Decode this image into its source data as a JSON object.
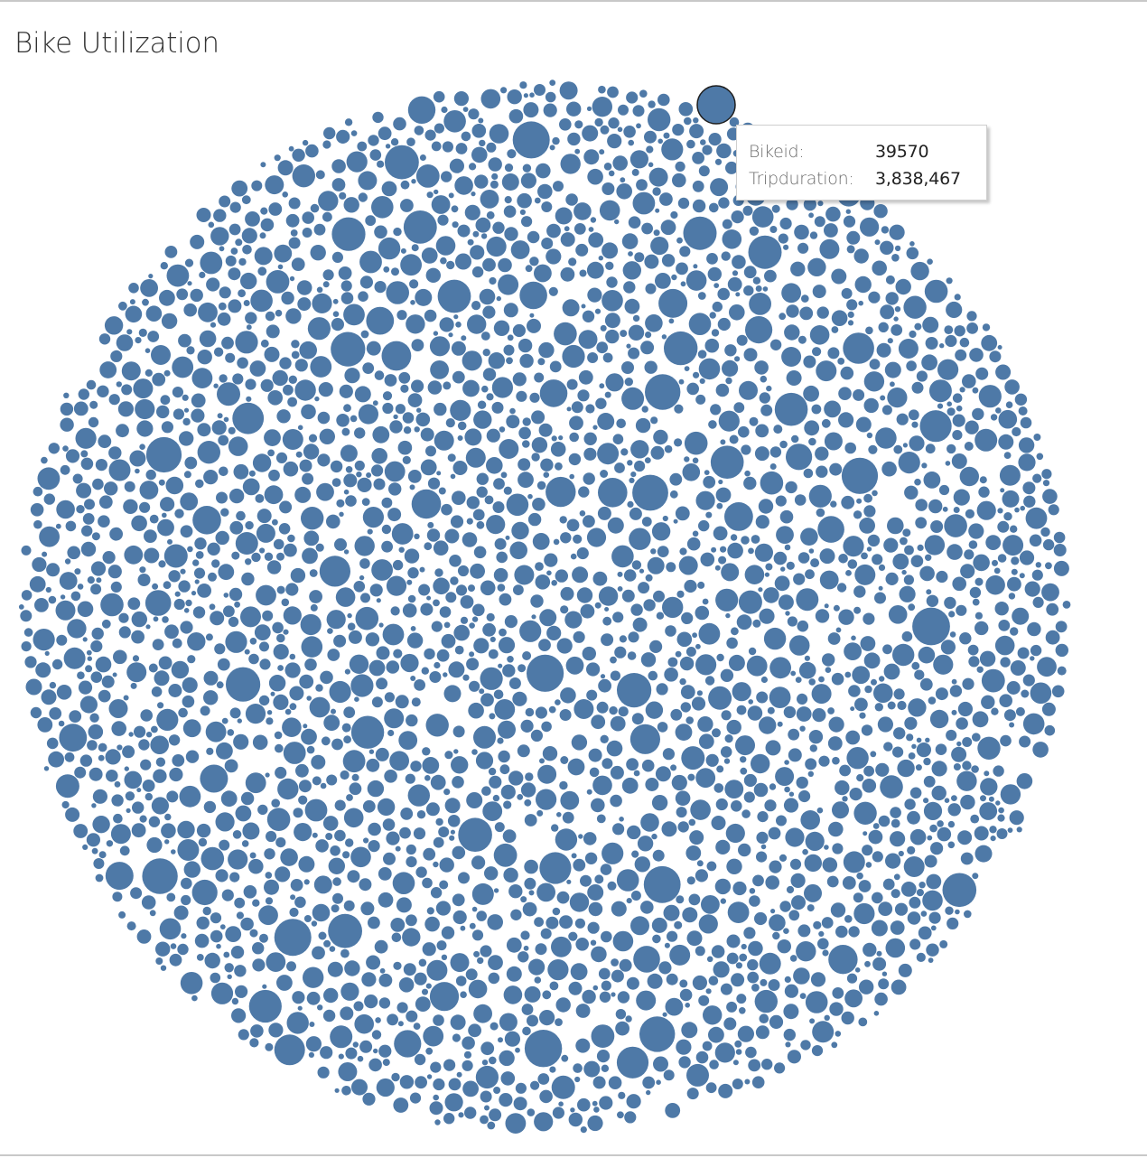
{
  "title": "Bike Utilization",
  "colors": {
    "bubble_fill": "#4e79a7",
    "highlight_stroke": "#1f1f1f",
    "background": "#ffffff"
  },
  "tooltip": {
    "bikeid_label": "Bikeid:",
    "bikeid_value": "39570",
    "tripduration_label": "Tripduration:",
    "tripduration_value": "3,838,467"
  },
  "chart_data": {
    "type": "packed-bubble",
    "title": "Bike Utilization",
    "dimension": "Bikeid",
    "measure": "Tripduration",
    "highlighted": {
      "bikeid": "39570",
      "tripduration": 3838467
    },
    "grid": false,
    "legend": "none"
  }
}
